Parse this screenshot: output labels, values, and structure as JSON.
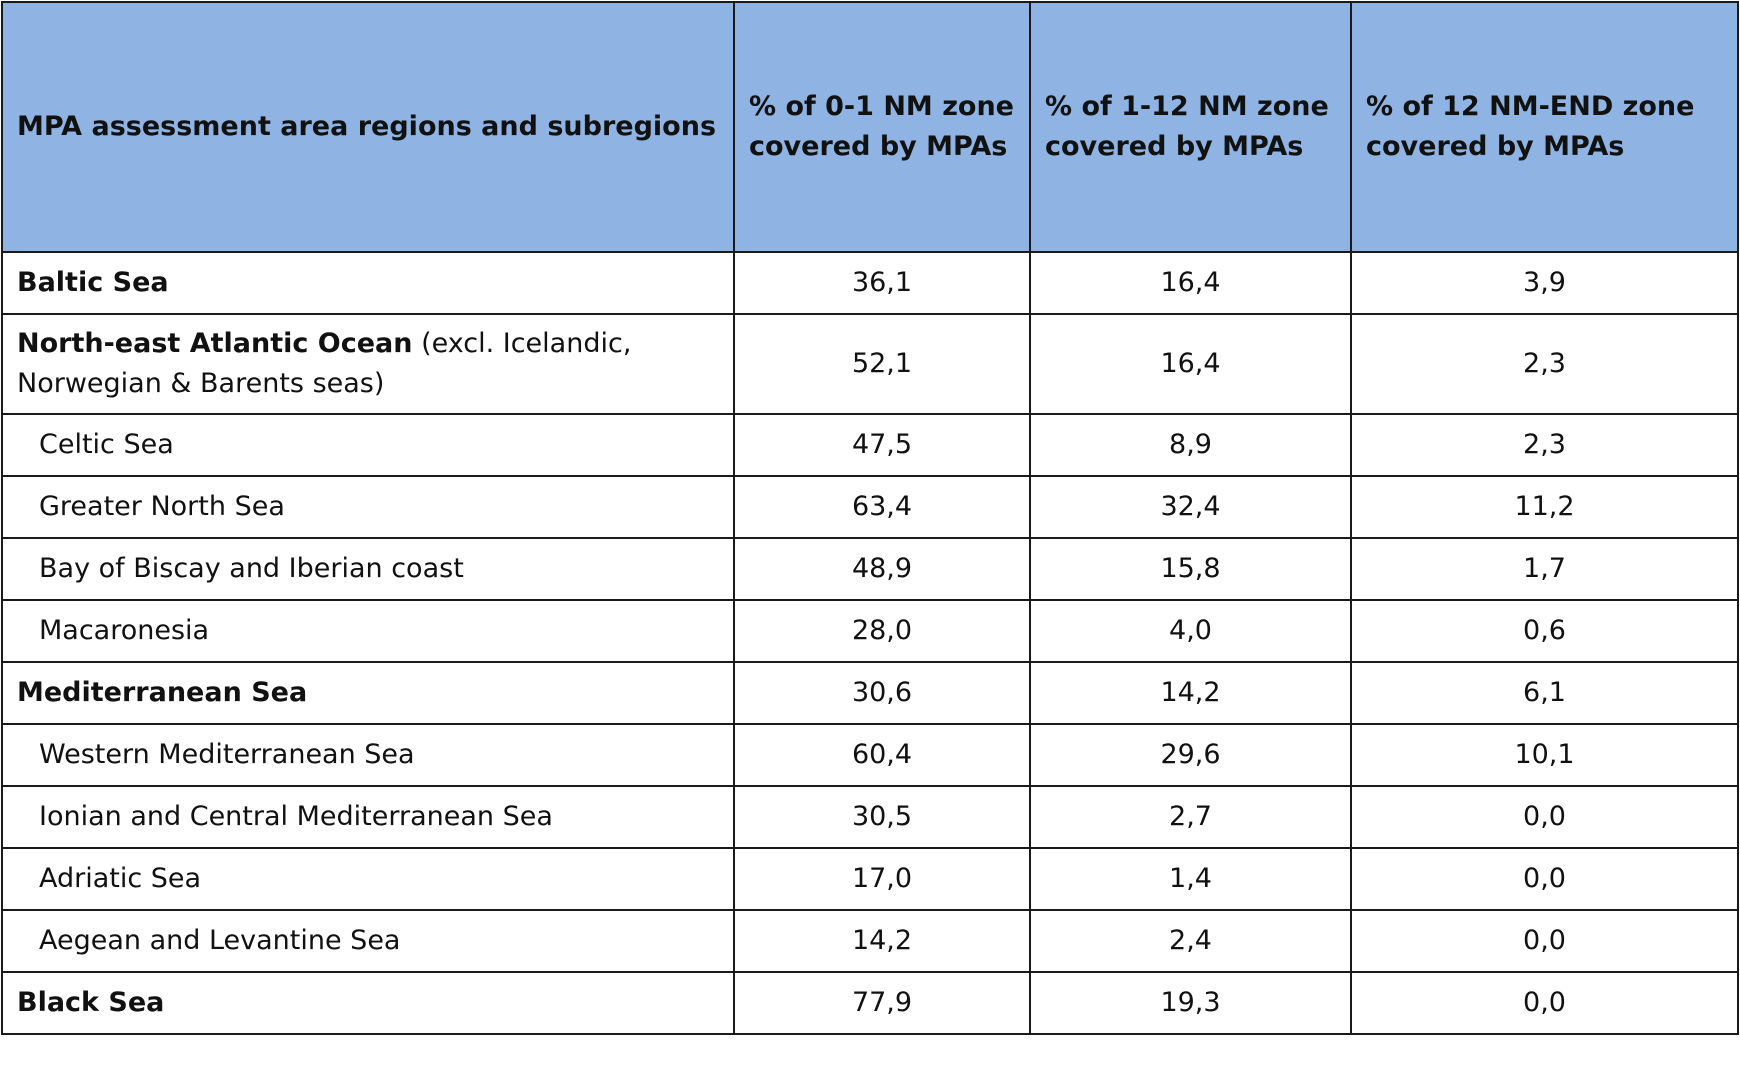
{
  "headers": [
    "MPA assessment area regions and subregions",
    "% of 0-1 NM zone covered by MPAs",
    "% of 1-12 NM zone covered by MPAs",
    "% of  12 NM-END zone covered by MPAs"
  ],
  "rows": [
    {
      "name": "Baltic Sea",
      "note": "",
      "c1": "36,1",
      "c2": "16,4",
      "c3": "3,9"
    },
    {
      "name": "North-east Atlantic Ocean",
      "note": " (excl. Icelandic, Norwegian & Barents seas)",
      "c1": "52,1",
      "c2": "16,4",
      "c3": "2,3"
    },
    {
      "name": "Celtic Sea",
      "c1": "47,5",
      "c2": "8,9",
      "c3": "2,3"
    },
    {
      "name": "Greater North Sea",
      "c1": "63,4",
      "c2": "32,4",
      "c3": "11,2"
    },
    {
      "name": "Bay of Biscay and Iberian coast",
      "c1": "48,9",
      "c2": "15,8",
      "c3": "1,7"
    },
    {
      "name": "Macaronesia",
      "c1": "28,0",
      "c2": "4,0",
      "c3": "0,6"
    },
    {
      "name": "Mediterranean Sea",
      "note": "",
      "c1": "30,6",
      "c2": "14,2",
      "c3": "6,1"
    },
    {
      "name": "Western Mediterranean Sea",
      "c1": "60,4",
      "c2": "29,6",
      "c3": "10,1"
    },
    {
      "name": "Ionian and Central Mediterranean Sea",
      "c1": "30,5",
      "c2": "2,7",
      "c3": "0,0"
    },
    {
      "name": "Adriatic Sea",
      "c1": "17,0",
      "c2": "1,4",
      "c3": "0,0"
    },
    {
      "name": "Aegean and Levantine Sea",
      "c1": "14,2",
      "c2": "2,4",
      "c3": "0,0"
    },
    {
      "name": "Black Sea",
      "note": "",
      "c1": "77,9",
      "c2": "19,3",
      "c3": "0,0"
    }
  ]
}
